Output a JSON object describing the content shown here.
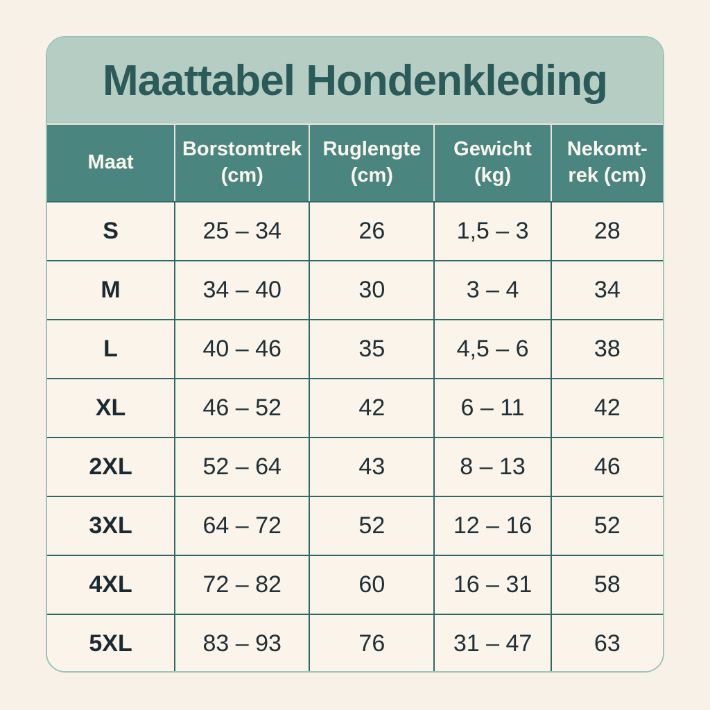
{
  "title": "Maattabel Hondenkleding",
  "table": {
    "headers": [
      "Maat",
      "Borstomtrek\n(cm)",
      "Ruglengte\n(cm)",
      "Gewicht\n(kg)",
      "Nekomt-\nrek (cm)"
    ],
    "rows": [
      [
        "S",
        "25 – 34",
        "26",
        "1,5 – 3",
        "28"
      ],
      [
        "M",
        "34 – 40",
        "30",
        "3 – 4",
        "34"
      ],
      [
        "L",
        "40 – 46",
        "35",
        "4,5 – 6",
        "38"
      ],
      [
        "XL",
        "46 – 52",
        "42",
        "6 – 11",
        "42"
      ],
      [
        "2XL",
        "52 – 64",
        "43",
        "8 – 13",
        "46"
      ],
      [
        "3XL",
        "64 – 72",
        "52",
        "12 – 16",
        "52"
      ],
      [
        "4XL",
        "72 – 82",
        "60",
        "16 – 31",
        "58"
      ],
      [
        "5XL",
        "83 – 93",
        "76",
        "31 – 47",
        "63"
      ]
    ]
  },
  "colors": {
    "page_background": "#f7f1e8",
    "title_band": "#b6cdc4",
    "title_text": "#2b5b58",
    "header_background": "#4a867f",
    "header_text": "#faf6ee",
    "body_background": "#faf4ea",
    "body_text": "#212f36",
    "grid_line": "#2e6a65",
    "outer_border": "#9dc3ba",
    "header_divider": "#e9e3d7"
  },
  "chart_data": {
    "type": "table",
    "title": "Maattabel Hondenkleding",
    "columns": [
      "Maat",
      "Borstomtrek (cm)",
      "Ruglengte (cm)",
      "Gewicht (kg)",
      "Nekomtrek (cm)"
    ],
    "rows": [
      [
        "S",
        "25–34",
        "26",
        "1,5–3",
        "28"
      ],
      [
        "M",
        "34–40",
        "30",
        "3–4",
        "34"
      ],
      [
        "L",
        "40–46",
        "35",
        "4,5–6",
        "38"
      ],
      [
        "XL",
        "46–52",
        "42",
        "6–11",
        "42"
      ],
      [
        "2XL",
        "52–64",
        "43",
        "8–13",
        "46"
      ],
      [
        "3XL",
        "64–72",
        "52",
        "12–16",
        "52"
      ],
      [
        "4XL",
        "72–82",
        "60",
        "16–31",
        "58"
      ],
      [
        "5XL",
        "83–93",
        "76",
        "31–47",
        "63"
      ]
    ]
  }
}
